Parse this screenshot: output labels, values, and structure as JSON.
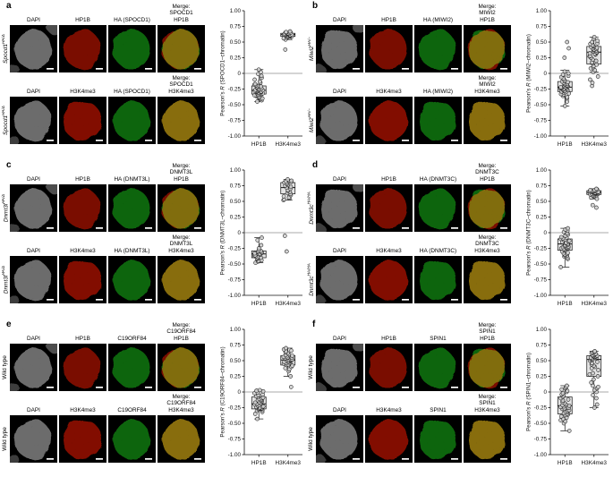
{
  "figure": {
    "background": "#ffffff"
  },
  "panels": [
    {
      "letter": "a",
      "genotype": {
        "base": "Spocd1",
        "sup": "HA/Δ",
        "italic": true
      },
      "rows": [
        {
          "labels": [
            "DAPI",
            "HP1B",
            "HA (SPOCD1)"
          ],
          "merge": [
            "Merge:",
            "SPOCD1",
            "HP1B"
          ],
          "channels": [
            "gray",
            "red",
            "green",
            "merge-rg"
          ]
        },
        {
          "labels": [
            "DAPI",
            "H3K4me3",
            "HA (SPOCD1)"
          ],
          "merge": [
            "Merge:",
            "SPOCD1",
            "H3K4me3"
          ],
          "channels": [
            "gray",
            "red2",
            "green",
            "merge-y"
          ]
        }
      ]
    },
    {
      "letter": "b",
      "genotype": {
        "base": "Miwi2",
        "sup": "HA/−",
        "italic": true
      },
      "rows": [
        {
          "labels": [
            "DAPI",
            "HP1B",
            "HA (MIWI2)"
          ],
          "merge": [
            "Merge:",
            "MIWI2",
            "HP1B"
          ],
          "channels": [
            "gray",
            "red",
            "green",
            "merge-rg"
          ]
        },
        {
          "labels": [
            "DAPI",
            "H3K4me3",
            "HA (MIWI2)"
          ],
          "merge": [
            "Merge:",
            "MIWI2",
            "H3K4me3"
          ],
          "channels": [
            "gray",
            "red2",
            "green",
            "merge-y"
          ]
        }
      ]
    },
    {
      "letter": "c",
      "genotype": {
        "base": "Dnmt3l",
        "sup": "HA/Δ",
        "italic": true
      },
      "rows": [
        {
          "labels": [
            "DAPI",
            "HP1B",
            "HA (DNMT3L)"
          ],
          "merge": [
            "Merge:",
            "DNMT3L",
            "HP1B"
          ],
          "channels": [
            "gray",
            "red",
            "green",
            "merge-rg"
          ]
        },
        {
          "labels": [
            "DAPI",
            "H3K4me3",
            "HA (DNMT3L)"
          ],
          "merge": [
            "Merge:",
            "DNMT3L",
            "H3K4me3"
          ],
          "channels": [
            "gray",
            "red2",
            "green",
            "merge-y"
          ]
        }
      ]
    },
    {
      "letter": "d",
      "genotype": {
        "base": "Dnmt3c",
        "sup": "HA/HA",
        "italic": true
      },
      "rows": [
        {
          "labels": [
            "DAPI",
            "HP1B",
            "HA (DNMT3C)"
          ],
          "merge": [
            "Merge:",
            "DNMT3C",
            "HP1B"
          ],
          "channels": [
            "gray",
            "red",
            "green",
            "merge-rg"
          ]
        },
        {
          "labels": [
            "DAPI",
            "H3K4me3",
            "HA (DNMT3C)"
          ],
          "merge": [
            "Merge:",
            "DNMT3C",
            "H3K4me3"
          ],
          "channels": [
            "gray",
            "red2",
            "green",
            "merge-y"
          ]
        }
      ]
    },
    {
      "letter": "e",
      "genotype": {
        "base": "Wild type",
        "sup": "",
        "italic": false
      },
      "rows": [
        {
          "labels": [
            "DAPI",
            "HP1B",
            "C19ORF84"
          ],
          "merge": [
            "Merge:",
            "C19ORF84",
            "HP1B"
          ],
          "channels": [
            "gray",
            "red",
            "green",
            "merge-rg"
          ]
        },
        {
          "labels": [
            "DAPI",
            "H3K4me3",
            "C19ORF84"
          ],
          "merge": [
            "Merge:",
            "C19ORF84",
            "H3K4me3"
          ],
          "channels": [
            "gray",
            "red2",
            "green",
            "merge-y"
          ]
        }
      ]
    },
    {
      "letter": "f",
      "genotype": {
        "base": "Wild type",
        "sup": "",
        "italic": false
      },
      "rows": [
        {
          "labels": [
            "DAPI",
            "HP1B",
            "SPIN1"
          ],
          "merge": [
            "Merge:",
            "SPIN1",
            "HP1B"
          ],
          "channels": [
            "gray",
            "red",
            "green",
            "merge-rg"
          ]
        },
        {
          "labels": [
            "DAPI",
            "H3K4me3",
            "SPIN1"
          ],
          "merge": [
            "Merge:",
            "SPIN1",
            "H3K4me3"
          ],
          "channels": [
            "gray",
            "red2",
            "green",
            "merge-y"
          ]
        }
      ]
    }
  ],
  "chart_data": [
    {
      "type": "box",
      "panel": "a",
      "ylabel": {
        "pre": "Pearson's ",
        "r": "R",
        "suf": " (SPOCD1–chromatin)"
      },
      "categories": [
        "HP1B",
        "H3K4me3"
      ],
      "ylim": [
        -1,
        1
      ],
      "ytick_step": 0.25,
      "zero_line": true,
      "groups": [
        {
          "name": "HP1B",
          "box": {
            "lo": -0.45,
            "q1": -0.33,
            "med": -0.27,
            "q3": -0.2,
            "hi": 0.06
          },
          "points": [
            -0.45,
            -0.43,
            -0.41,
            -0.4,
            -0.39,
            -0.38,
            -0.37,
            -0.36,
            -0.35,
            -0.35,
            -0.34,
            -0.33,
            -0.33,
            -0.32,
            -0.32,
            -0.31,
            -0.31,
            -0.3,
            -0.3,
            -0.29,
            -0.29,
            -0.28,
            -0.28,
            -0.27,
            -0.27,
            -0.26,
            -0.26,
            -0.25,
            -0.25,
            -0.24,
            -0.23,
            -0.22,
            -0.21,
            -0.2,
            -0.19,
            -0.18,
            -0.17,
            -0.15,
            -0.13,
            -0.1,
            -0.07,
            -0.04,
            -0.01,
            0.02,
            0.06
          ]
        },
        {
          "name": "H3K4me3",
          "box": {
            "lo": 0.54,
            "q1": 0.59,
            "med": 0.62,
            "q3": 0.64,
            "hi": 0.67
          },
          "points": [
            0.38,
            0.54,
            0.56,
            0.57,
            0.58,
            0.58,
            0.59,
            0.59,
            0.6,
            0.6,
            0.6,
            0.61,
            0.61,
            0.61,
            0.62,
            0.62,
            0.62,
            0.63,
            0.63,
            0.63,
            0.64,
            0.64,
            0.65,
            0.65,
            0.66,
            0.67
          ]
        }
      ]
    },
    {
      "type": "box",
      "panel": "b",
      "ylabel": {
        "pre": "Pearson's ",
        "r": "R",
        "suf": " (MIWI2–chromatin)"
      },
      "categories": [
        "HP1B",
        "H3K4me3"
      ],
      "ylim": [
        -1,
        1
      ],
      "ytick_step": 0.25,
      "zero_line": true,
      "groups": [
        {
          "name": "HP1B",
          "box": {
            "lo": -0.52,
            "q1": -0.29,
            "med": -0.22,
            "q3": -0.13,
            "hi": 0.05
          },
          "points": [
            0.5,
            0.4,
            0.25,
            -0.52,
            -0.45,
            -0.4,
            -0.38,
            -0.36,
            -0.34,
            -0.33,
            -0.32,
            -0.31,
            -0.3,
            -0.29,
            -0.28,
            -0.28,
            -0.27,
            -0.26,
            -0.26,
            -0.25,
            -0.25,
            -0.24,
            -0.24,
            -0.23,
            -0.23,
            -0.22,
            -0.22,
            -0.21,
            -0.2,
            -0.2,
            -0.19,
            -0.18,
            -0.17,
            -0.16,
            -0.15,
            -0.14,
            -0.13,
            -0.12,
            -0.1,
            -0.08,
            -0.06,
            -0.04,
            -0.02,
            0,
            0.03
          ]
        },
        {
          "name": "H3K4me3",
          "box": {
            "lo": 0.02,
            "q1": 0.15,
            "med": 0.34,
            "q3": 0.43,
            "hi": 0.58
          },
          "points": [
            -0.2,
            -0.15,
            -0.1,
            -0.05,
            0.02,
            0.05,
            0.08,
            0.1,
            0.12,
            0.14,
            0.16,
            0.18,
            0.2,
            0.22,
            0.25,
            0.27,
            0.28,
            0.3,
            0.31,
            0.32,
            0.33,
            0.34,
            0.35,
            0.36,
            0.37,
            0.38,
            0.39,
            0.4,
            0.41,
            0.42,
            0.43,
            0.44,
            0.45,
            0.47,
            0.48,
            0.5,
            0.52,
            0.55,
            0.58
          ]
        }
      ]
    },
    {
      "type": "box",
      "panel": "c",
      "ylabel": {
        "pre": "Pearson's ",
        "r": "R",
        "suf": " (DNMT3L–chromatin)"
      },
      "categories": [
        "HP1B",
        "H3K4me3"
      ],
      "ylim": [
        -1,
        1
      ],
      "ytick_step": 0.25,
      "zero_line": true,
      "groups": [
        {
          "name": "HP1B",
          "box": {
            "lo": -0.48,
            "q1": -0.4,
            "med": -0.34,
            "q3": -0.29,
            "hi": -0.08
          },
          "points": [
            -0.48,
            -0.46,
            -0.45,
            -0.44,
            -0.42,
            -0.41,
            -0.4,
            -0.39,
            -0.38,
            -0.37,
            -0.36,
            -0.35,
            -0.34,
            -0.33,
            -0.32,
            -0.31,
            -0.3,
            -0.29,
            -0.28,
            -0.25,
            -0.2,
            -0.12,
            -0.08
          ]
        },
        {
          "name": "H3K4me3",
          "box": {
            "lo": 0.52,
            "q1": 0.62,
            "med": 0.72,
            "q3": 0.8,
            "hi": 0.85
          },
          "points": [
            -0.3,
            -0.05,
            0.52,
            0.53,
            0.55,
            0.56,
            0.58,
            0.6,
            0.62,
            0.63,
            0.65,
            0.67,
            0.68,
            0.7,
            0.72,
            0.73,
            0.75,
            0.76,
            0.78,
            0.79,
            0.8,
            0.81,
            0.82,
            0.83,
            0.85
          ]
        }
      ]
    },
    {
      "type": "box",
      "panel": "d",
      "ylabel": {
        "pre": "Pearson's ",
        "r": "R",
        "suf": " (DNMT3C–chromatin)"
      },
      "categories": [
        "HP1B",
        "H3K4me3"
      ],
      "ylim": [
        -1,
        1
      ],
      "ytick_step": 0.25,
      "zero_line": true,
      "groups": [
        {
          "name": "HP1B",
          "box": {
            "lo": -0.55,
            "q1": -0.28,
            "med": -0.18,
            "q3": -0.1,
            "hi": 0.07
          },
          "points": [
            -0.55,
            -0.42,
            -0.4,
            -0.38,
            -0.37,
            -0.36,
            -0.35,
            -0.34,
            -0.33,
            -0.32,
            -0.3,
            -0.28,
            -0.27,
            -0.26,
            -0.25,
            -0.24,
            -0.23,
            -0.22,
            -0.21,
            -0.2,
            -0.19,
            -0.18,
            -0.17,
            -0.16,
            -0.15,
            -0.14,
            -0.13,
            -0.12,
            -0.11,
            -0.1,
            -0.09,
            -0.08,
            -0.07,
            -0.05,
            -0.03,
            -0.01,
            0.01,
            0.03,
            0.05,
            0.07
          ]
        },
        {
          "name": "H3K4me3",
          "box": {
            "lo": 0.54,
            "q1": 0.61,
            "med": 0.64,
            "q3": 0.67,
            "hi": 0.7
          },
          "points": [
            0.4,
            0.44,
            0.54,
            0.56,
            0.58,
            0.59,
            0.6,
            0.61,
            0.61,
            0.62,
            0.62,
            0.63,
            0.63,
            0.63,
            0.64,
            0.64,
            0.64,
            0.65,
            0.65,
            0.65,
            0.66,
            0.66,
            0.66,
            0.67,
            0.67,
            0.68,
            0.68,
            0.69,
            0.7
          ]
        }
      ]
    },
    {
      "type": "box",
      "panel": "e",
      "ylabel": {
        "pre": "Pearson's ",
        "r": "R",
        "suf": " (C19ORF84–chromatin)"
      },
      "categories": [
        "HP1B",
        "H3K4me3"
      ],
      "ylim": [
        -1,
        1
      ],
      "ytick_step": 0.25,
      "zero_line": true,
      "groups": [
        {
          "name": "HP1B",
          "box": {
            "lo": -0.43,
            "q1": -0.27,
            "med": -0.19,
            "q3": -0.08,
            "hi": 0.03
          },
          "points": [
            -0.43,
            -0.35,
            -0.32,
            -0.3,
            -0.29,
            -0.28,
            -0.27,
            -0.27,
            -0.26,
            -0.26,
            -0.25,
            -0.24,
            -0.24,
            -0.23,
            -0.22,
            -0.21,
            -0.2,
            -0.19,
            -0.18,
            -0.17,
            -0.16,
            -0.15,
            -0.14,
            -0.13,
            -0.12,
            -0.11,
            -0.1,
            -0.09,
            -0.08,
            -0.07,
            -0.05,
            -0.04,
            -0.02,
            -0.01,
            0.01,
            0.02,
            0.03
          ]
        },
        {
          "name": "H3K4me3",
          "box": {
            "lo": 0.25,
            "q1": 0.43,
            "med": 0.51,
            "q3": 0.58,
            "hi": 0.7
          },
          "points": [
            0.08,
            0.25,
            0.33,
            0.36,
            0.38,
            0.4,
            0.42,
            0.43,
            0.44,
            0.45,
            0.46,
            0.47,
            0.48,
            0.48,
            0.49,
            0.5,
            0.5,
            0.51,
            0.51,
            0.52,
            0.52,
            0.53,
            0.54,
            0.55,
            0.55,
            0.56,
            0.57,
            0.58,
            0.59,
            0.6,
            0.62,
            0.63,
            0.65,
            0.66,
            0.68,
            0.7
          ]
        }
      ]
    },
    {
      "type": "box",
      "panel": "f",
      "ylabel": {
        "pre": "Pearson's ",
        "r": "R",
        "suf": " (SPIN1–chromatin)"
      },
      "categories": [
        "HP1B",
        "H3K4me3"
      ],
      "ylim": [
        -1,
        1
      ],
      "ytick_step": 0.25,
      "zero_line": true,
      "groups": [
        {
          "name": "HP1B",
          "box": {
            "lo": -0.62,
            "q1": -0.35,
            "med": -0.22,
            "q3": -0.08,
            "hi": 0.1
          },
          "points": [
            -0.62,
            -0.5,
            -0.47,
            -0.45,
            -0.43,
            -0.41,
            -0.39,
            -0.37,
            -0.36,
            -0.35,
            -0.34,
            -0.32,
            -0.31,
            -0.3,
            -0.29,
            -0.28,
            -0.27,
            -0.26,
            -0.25,
            -0.24,
            -0.23,
            -0.22,
            -0.21,
            -0.2,
            -0.18,
            -0.16,
            -0.14,
            -0.12,
            -0.1,
            -0.08,
            -0.06,
            -0.04,
            -0.02,
            0,
            0.02,
            0.04,
            0.06,
            0.08,
            0.1
          ]
        },
        {
          "name": "H3K4me3",
          "box": {
            "lo": -0.25,
            "q1": 0.25,
            "med": 0.52,
            "q3": 0.58,
            "hi": 0.65
          },
          "points": [
            -0.25,
            -0.2,
            -0.1,
            -0.05,
            0,
            0.03,
            0.06,
            0.08,
            0.1,
            0.15,
            0.2,
            0.25,
            0.28,
            0.3,
            0.35,
            0.38,
            0.4,
            0.42,
            0.44,
            0.46,
            0.48,
            0.5,
            0.51,
            0.52,
            0.53,
            0.54,
            0.54,
            0.55,
            0.55,
            0.56,
            0.56,
            0.57,
            0.57,
            0.58,
            0.58,
            0.59,
            0.6,
            0.61,
            0.62,
            0.63,
            0.64,
            0.65
          ]
        }
      ]
    }
  ],
  "channel_colors": {
    "gray": "#bababa",
    "red": "#d42100",
    "red2": "#e02600",
    "green": "#25b01e"
  }
}
